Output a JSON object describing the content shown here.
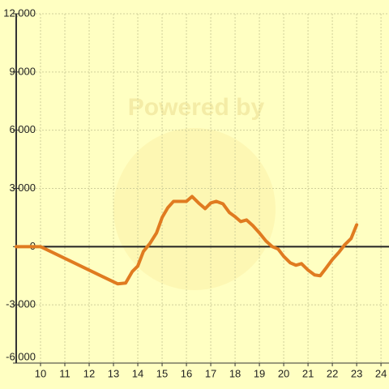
{
  "chart_data": {
    "type": "line",
    "annotation": "Powered by",
    "x": [
      9,
      10,
      13.17,
      13.5,
      13.77,
      14,
      14.23,
      14.5,
      14.77,
      15,
      15.23,
      15.47,
      16,
      16.23,
      16.5,
      16.77,
      17,
      17.23,
      17.5,
      17.77,
      18,
      18.23,
      18.47,
      18.73,
      19,
      19.27,
      19.53,
      19.77,
      20,
      20.27,
      20.5,
      20.73,
      21,
      21.27,
      21.5,
      21.73,
      22,
      22.27,
      22.5,
      22.77,
      23
    ],
    "series": [
      {
        "color": "#e07b20",
        "values": [
          0,
          0,
          -1917,
          -1875,
          -1290,
          -1000,
          -250,
          167,
          708,
          1500,
          2000,
          2333,
          2333,
          2583,
          2250,
          1958,
          2250,
          2333,
          2208,
          1750,
          1542,
          1292,
          1375,
          1083,
          708,
          292,
          0,
          -125,
          -500,
          -833,
          -958,
          -875,
          -1208,
          -1458,
          -1500,
          -1125,
          -667,
          -292,
          83,
          417,
          1125
        ]
      }
    ],
    "xlim": [
      9,
      24.33
    ],
    "xticks": [
      10,
      11,
      12,
      13,
      14,
      15,
      16,
      17,
      18,
      19,
      20,
      21,
      22,
      23,
      24
    ],
    "ylim": [
      -6000,
      12000
    ],
    "yticks": [
      {
        "value": -6000,
        "label": "-6,000"
      },
      {
        "value": -3000,
        "label": "-3,000"
      },
      0,
      {
        "value": 3000,
        "label": "3,000"
      },
      {
        "value": 6000,
        "label": "6,000"
      },
      {
        "value": 9000,
        "label": "9,000"
      },
      {
        "value": 12000,
        "label": "12,000"
      }
    ],
    "grid": true
  }
}
